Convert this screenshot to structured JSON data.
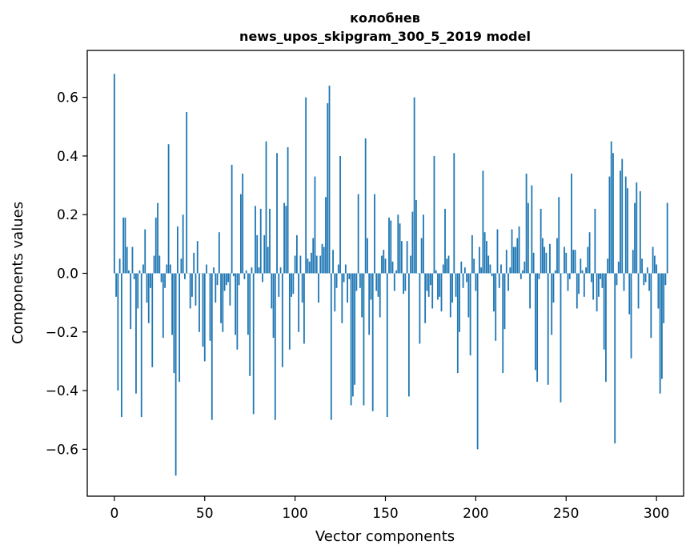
{
  "chart_data": {
    "type": "bar",
    "title": "колобнев",
    "subtitle": "news_upos_skipgram_300_5_2019 model",
    "xlabel": "Vector components",
    "ylabel": "Components values",
    "xlim": [
      -15,
      315
    ],
    "ylim": [
      -0.76,
      0.76
    ],
    "xticks": [
      0,
      50,
      100,
      150,
      200,
      250,
      300
    ],
    "yticks": [
      -0.6,
      -0.4,
      -0.2,
      0.0,
      0.2,
      0.4,
      0.6
    ],
    "ytick_labels": [
      "−0.6",
      "−0.4",
      "−0.2",
      "0.0",
      "0.2",
      "0.4",
      "0.6"
    ],
    "grid": false,
    "color": "#1f77b4",
    "values": [
      0.68,
      -0.08,
      -0.4,
      0.05,
      -0.49,
      0.19,
      0.19,
      0.09,
      0.01,
      -0.19,
      0.09,
      -0.02,
      -0.41,
      -0.12,
      0.01,
      -0.49,
      0.03,
      0.15,
      -0.1,
      -0.17,
      -0.05,
      -0.32,
      0.06,
      0.19,
      0.24,
      0.06,
      -0.03,
      -0.22,
      -0.05,
      0.03,
      0.44,
      0.03,
      -0.21,
      -0.34,
      -0.69,
      0.16,
      -0.37,
      0.05,
      0.2,
      -0.02,
      0.55,
      0.0,
      -0.12,
      -0.08,
      0.07,
      -0.11,
      0.11,
      -0.2,
      0.0,
      -0.25,
      -0.3,
      0.03,
      0.0,
      -0.23,
      -0.5,
      0.02,
      -0.1,
      -0.04,
      0.14,
      -0.17,
      -0.2,
      -0.06,
      -0.04,
      -0.03,
      -0.11,
      0.37,
      -0.01,
      -0.21,
      -0.26,
      -0.04,
      0.27,
      0.34,
      -0.02,
      0.01,
      -0.21,
      -0.35,
      0.02,
      -0.48,
      0.23,
      0.13,
      0.02,
      0.22,
      -0.03,
      0.13,
      0.45,
      0.09,
      0.22,
      -0.12,
      -0.22,
      -0.5,
      0.41,
      -0.08,
      0.02,
      -0.32,
      0.24,
      0.23,
      0.43,
      -0.26,
      -0.08,
      -0.07,
      0.06,
      0.13,
      -0.2,
      0.06,
      -0.1,
      -0.24,
      0.6,
      0.05,
      0.04,
      0.07,
      0.12,
      0.33,
      0.06,
      -0.1,
      0.06,
      0.1,
      0.09,
      0.26,
      0.58,
      0.64,
      -0.5,
      0.08,
      -0.13,
      -0.05,
      0.03,
      0.4,
      -0.17,
      -0.03,
      0.03,
      -0.1,
      -0.02,
      -0.45,
      -0.42,
      -0.38,
      -0.06,
      0.27,
      -0.05,
      -0.15,
      -0.45,
      0.46,
      0.12,
      -0.21,
      -0.09,
      -0.47,
      0.27,
      -0.06,
      -0.08,
      -0.15,
      0.06,
      0.08,
      0.05,
      -0.49,
      0.19,
      0.18,
      0.04,
      -0.06,
      0.01,
      0.2,
      0.17,
      0.11,
      -0.07,
      -0.06,
      0.11,
      -0.42,
      0.06,
      0.21,
      0.6,
      0.25,
      0.0,
      -0.24,
      0.12,
      0.2,
      -0.17,
      -0.06,
      -0.08,
      -0.04,
      -0.12,
      0.4,
      0.01,
      -0.09,
      -0.08,
      -0.13,
      0.03,
      0.22,
      0.05,
      0.06,
      -0.15,
      -0.1,
      0.41,
      -0.08,
      -0.34,
      -0.2,
      0.04,
      -0.05,
      0.02,
      -0.03,
      -0.15,
      -0.28,
      0.13,
      0.05,
      -0.06,
      -0.6,
      0.09,
      0.02,
      0.35,
      0.14,
      0.11,
      0.06,
      0.03,
      -0.01,
      -0.13,
      -0.23,
      0.15,
      -0.05,
      0.03,
      -0.34,
      -0.19,
      0.08,
      -0.06,
      0.02,
      0.15,
      0.09,
      0.09,
      0.12,
      0.16,
      -0.02,
      0.01,
      0.04,
      0.34,
      0.24,
      -0.12,
      0.3,
      0.07,
      -0.33,
      -0.37,
      -0.02,
      0.22,
      0.12,
      0.09,
      0.07,
      -0.38,
      0.1,
      -0.21,
      -0.1,
      0.01,
      0.12,
      0.26,
      -0.44,
      0.0,
      0.09,
      0.07,
      -0.06,
      -0.02,
      0.34,
      0.08,
      0.08,
      -0.12,
      -0.07,
      0.05,
      0.01,
      -0.08,
      0.02,
      0.09,
      0.14,
      -0.03,
      -0.09,
      0.22,
      -0.13,
      -0.08,
      -0.02,
      -0.05,
      -0.26,
      -0.37,
      0.05,
      0.33,
      0.45,
      0.41,
      -0.58,
      -0.04,
      0.04,
      0.35,
      0.39,
      -0.06,
      0.33,
      0.29,
      -0.14,
      -0.29,
      0.08,
      0.24,
      0.31,
      -0.12,
      0.28,
      0.05,
      -0.04,
      -0.03,
      0.02,
      -0.06,
      -0.22,
      0.09,
      0.06,
      0.03,
      -0.12,
      -0.41,
      -0.36,
      -0.17,
      -0.04,
      0.24
    ]
  }
}
